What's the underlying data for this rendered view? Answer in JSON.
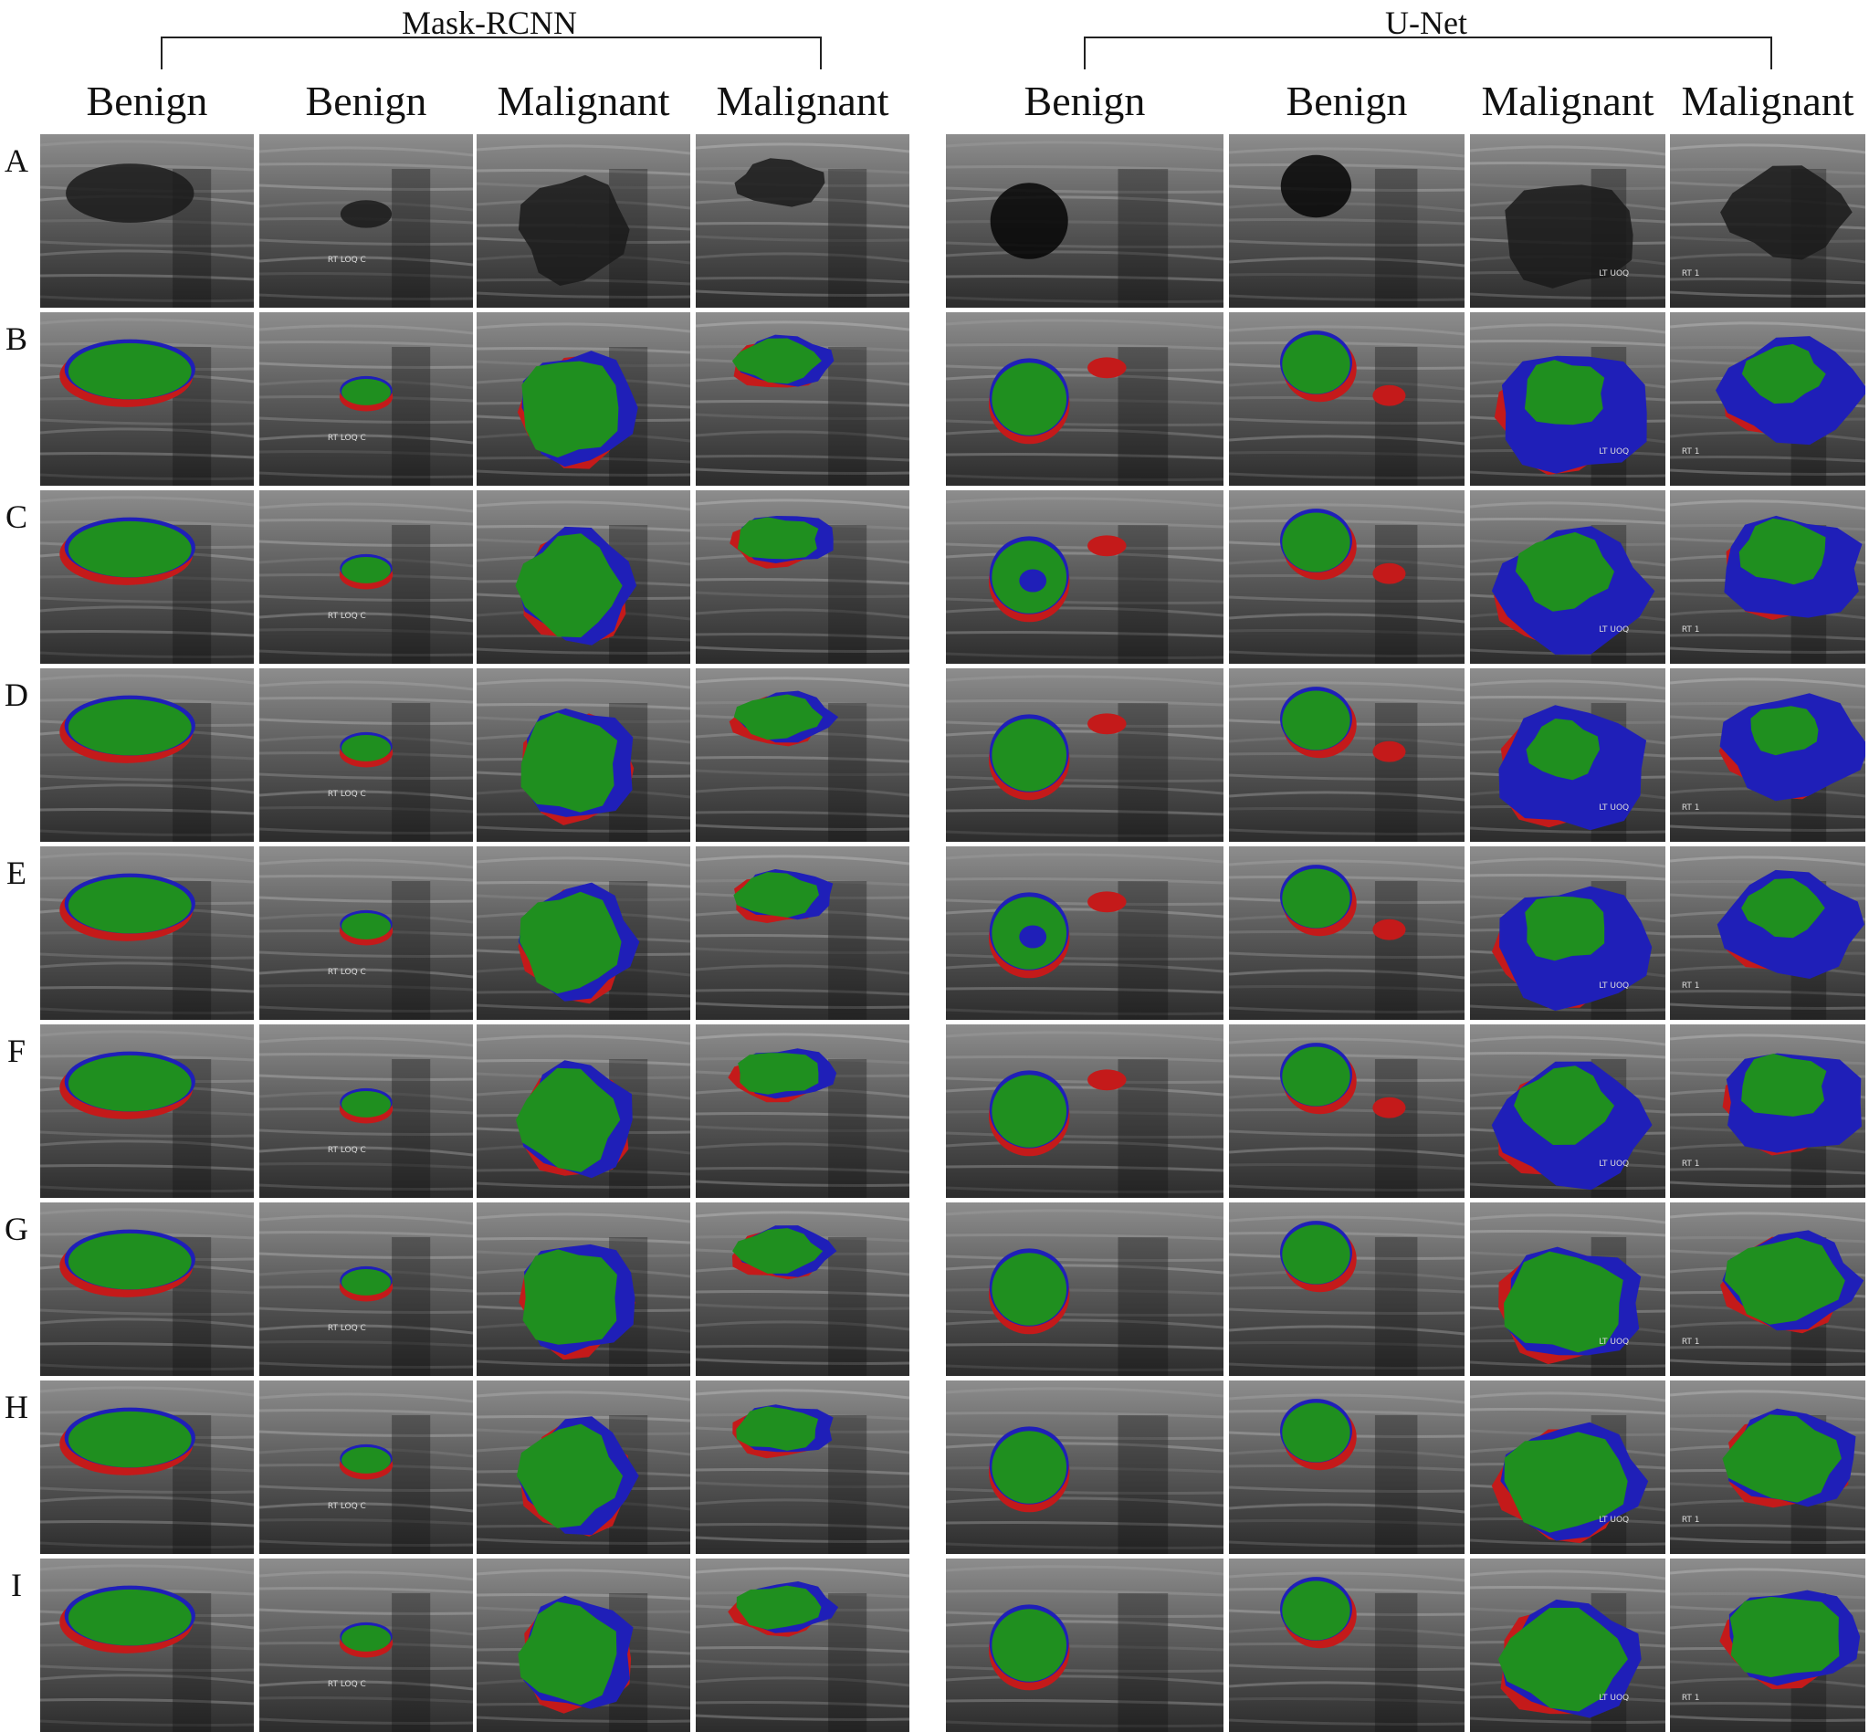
{
  "groups": [
    {
      "title": "Mask-RCNN"
    },
    {
      "title": "U-Net"
    }
  ],
  "columns": [
    {
      "label": "Benign",
      "group": 0
    },
    {
      "label": "Benign",
      "group": 0
    },
    {
      "label": "Malignant",
      "group": 0
    },
    {
      "label": "Malignant",
      "group": 0
    },
    {
      "label": "Benign",
      "group": 1
    },
    {
      "label": "Benign",
      "group": 1
    },
    {
      "label": "Malignant",
      "group": 1
    },
    {
      "label": "Malignant",
      "group": 1
    }
  ],
  "rows": [
    "A",
    "B",
    "C",
    "D",
    "E",
    "F",
    "G",
    "H",
    "I"
  ],
  "overlay_colors": {
    "green": "#1f8f1f",
    "red": "#c41a1a",
    "blue": "#1f1fb8"
  },
  "image_text": {
    "col2_marker": "RT LOQ C",
    "col7_marker": "LT UOQ",
    "col8_marker": "RT 1"
  }
}
